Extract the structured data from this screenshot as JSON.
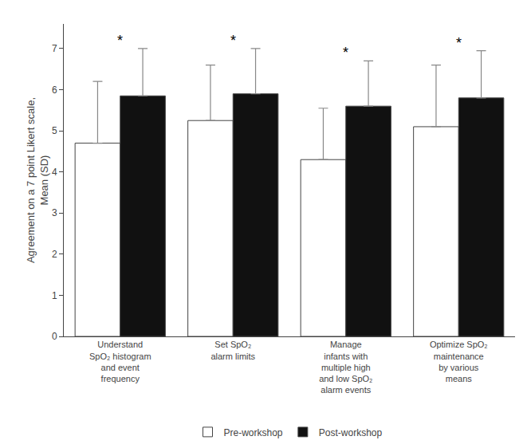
{
  "chart_data": {
    "type": "bar",
    "ylabel": "Agreement on a 7 point Likert scale,\nMean (SD)",
    "categories": [
      "Understand\nSpO₂ histogram\nand event\nfrequency",
      "Set SpO₂\nalarm limits",
      "Manage\ninfants with\nmultiple high\nand low SpO₂\nalarm events",
      "Optimize SpO₂\nmaintenance\nby various\nmeans"
    ],
    "series": [
      {
        "name": "Pre-workshop",
        "color": "#ffffff",
        "values": [
          4.7,
          5.25,
          4.3,
          5.1
        ],
        "error": [
          1.5,
          1.35,
          1.25,
          1.5
        ]
      },
      {
        "name": "Post-workshop",
        "color": "#111111",
        "values": [
          5.85,
          5.9,
          5.6,
          5.8
        ],
        "error": [
          1.15,
          1.1,
          1.1,
          1.15
        ]
      }
    ],
    "annotations": [
      {
        "text": "*",
        "category": "Understand\nSpO₂ histogram\nand event\nfrequency"
      },
      {
        "text": "*",
        "category": "Set SpO₂\nalarm limits"
      },
      {
        "text": "*",
        "category": "Manage\ninfants with\nmultiple high\nand low SpO₂\nalarm events"
      },
      {
        "text": "*",
        "category": "Optimize SpO₂\nmaintenance\nby various\nmeans"
      }
    ],
    "ylim": [
      0,
      7.6
    ],
    "yticks": [
      0,
      1,
      2,
      3,
      4,
      5,
      6,
      7
    ],
    "grid": false,
    "legend": "bottom"
  }
}
